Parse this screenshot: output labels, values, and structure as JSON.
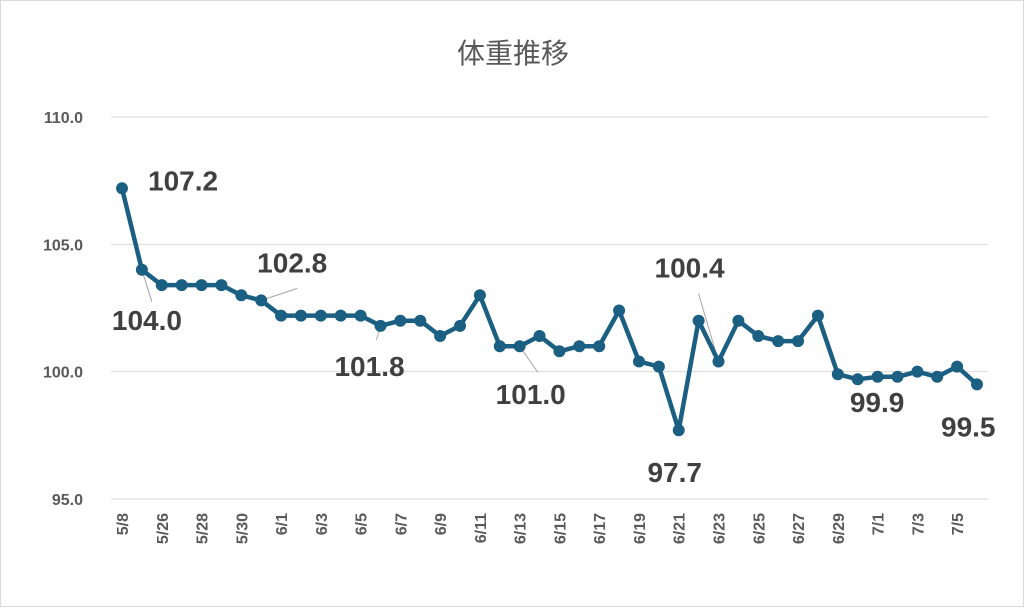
{
  "chart_data": {
    "type": "line",
    "title": "体重推移",
    "ylim": [
      95,
      110
    ],
    "yticks": [
      {
        "value": 95,
        "label": "95.0"
      },
      {
        "value": 100,
        "label": "100.0"
      },
      {
        "value": 105,
        "label": "105.0"
      },
      {
        "value": 110,
        "label": "110.0"
      }
    ],
    "grid": true,
    "legend": "none",
    "x_tick_labels": [
      "5/8",
      "5/26",
      "5/28",
      "5/30",
      "6/1",
      "6/3",
      "6/5",
      "6/7",
      "6/9",
      "6/11",
      "6/13",
      "6/15",
      "6/17",
      "6/19",
      "6/21",
      "6/23",
      "6/25",
      "6/27",
      "6/29",
      "7/1",
      "7/3",
      "7/5"
    ],
    "series": [
      {
        "color": "#1b5f82",
        "values": [
          107.2,
          104.0,
          103.4,
          103.4,
          103.4,
          103.4,
          103.0,
          102.8,
          102.2,
          102.2,
          102.2,
          102.2,
          102.2,
          101.8,
          102.0,
          102.0,
          101.4,
          101.8,
          103.0,
          101.0,
          101.0,
          101.4,
          100.8,
          101.0,
          101.0,
          102.4,
          100.4,
          100.2,
          97.7,
          102.0,
          100.4,
          102.0,
          101.4,
          101.2,
          101.2,
          102.2,
          99.9,
          99.7,
          99.8,
          99.8,
          100.0,
          99.8,
          100.2,
          99.5
        ]
      }
    ],
    "data_labels": [
      {
        "index": 0,
        "text": "107.2"
      },
      {
        "index": 1,
        "text": "104.0"
      },
      {
        "index": 7,
        "text": "102.8"
      },
      {
        "index": 13,
        "text": "101.8"
      },
      {
        "index": 20,
        "text": "101.0"
      },
      {
        "index": 28,
        "text": "97.7"
      },
      {
        "index": 30,
        "text": "100.4"
      },
      {
        "index": 36,
        "text": "99.9"
      },
      {
        "index": 43,
        "text": "99.5"
      }
    ]
  }
}
